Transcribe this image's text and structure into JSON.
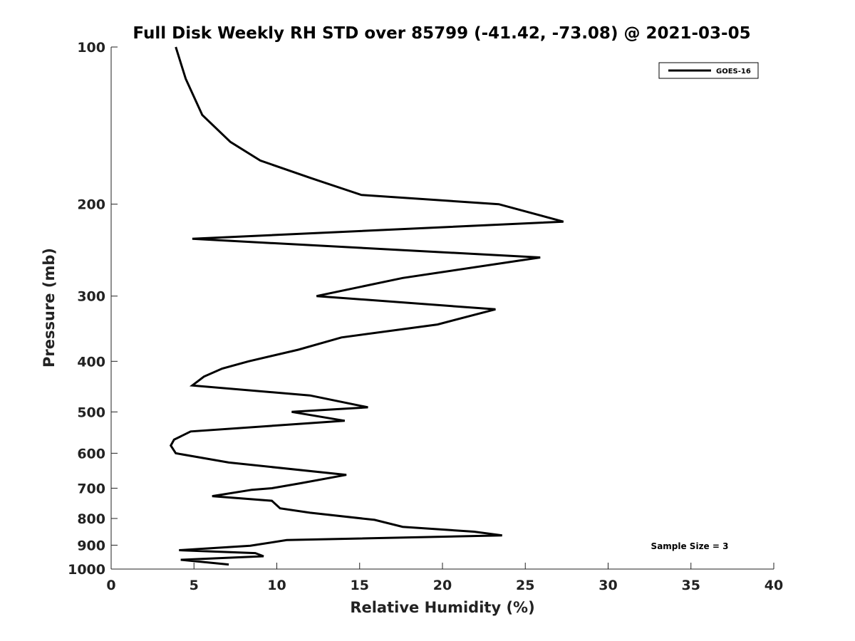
{
  "chart_data": {
    "type": "line",
    "title": "Full Disk Weekly RH STD over 85799 (-41.42, -73.08) @ 2021-03-05",
    "xlabel": "Relative Humidity (%)",
    "ylabel": "Pressure (mb)",
    "xlim": [
      0,
      40
    ],
    "ylim": [
      100,
      1000
    ],
    "y_scale": "log",
    "y_reversed": true,
    "xticks": [
      0,
      5,
      10,
      15,
      20,
      25,
      30,
      35,
      40
    ],
    "yticks": [
      100,
      200,
      300,
      400,
      500,
      600,
      700,
      800,
      900,
      1000
    ],
    "grid": false,
    "legend_position": "top-right",
    "annotation": "Sample Size = 3",
    "series": [
      {
        "name": "GOES-16",
        "color": "#000000",
        "points": [
          [
            3.9,
            100
          ],
          [
            4.5,
            115
          ],
          [
            5.5,
            135
          ],
          [
            7.2,
            152
          ],
          [
            9.0,
            165
          ],
          [
            12.0,
            178
          ],
          [
            15.1,
            192
          ],
          [
            23.4,
            200
          ],
          [
            27.3,
            216
          ],
          [
            4.9,
            233
          ],
          [
            25.9,
            253
          ],
          [
            17.6,
            277
          ],
          [
            12.4,
            300
          ],
          [
            23.2,
            318
          ],
          [
            19.7,
            340
          ],
          [
            13.9,
            360
          ],
          [
            11.3,
            380
          ],
          [
            8.3,
            400
          ],
          [
            6.7,
            413
          ],
          [
            5.6,
            428
          ],
          [
            4.9,
            445
          ],
          [
            12.0,
            465
          ],
          [
            15.5,
            490
          ],
          [
            10.9,
            500
          ],
          [
            14.1,
            520
          ],
          [
            4.8,
            545
          ],
          [
            3.8,
            565
          ],
          [
            3.6,
            580
          ],
          [
            3.9,
            600
          ],
          [
            7.1,
            625
          ],
          [
            14.2,
            660
          ],
          [
            11.4,
            685
          ],
          [
            9.7,
            700
          ],
          [
            8.5,
            705
          ],
          [
            6.1,
            725
          ],
          [
            9.7,
            740
          ],
          [
            10.2,
            765
          ],
          [
            12.0,
            780
          ],
          [
            15.9,
            805
          ],
          [
            17.6,
            830
          ],
          [
            21.9,
            848
          ],
          [
            23.6,
            862
          ],
          [
            10.6,
            880
          ],
          [
            8.4,
            902
          ],
          [
            4.1,
            920
          ],
          [
            8.7,
            932
          ],
          [
            9.2,
            945
          ],
          [
            4.2,
            960
          ],
          [
            7.1,
            980
          ]
        ]
      }
    ]
  }
}
